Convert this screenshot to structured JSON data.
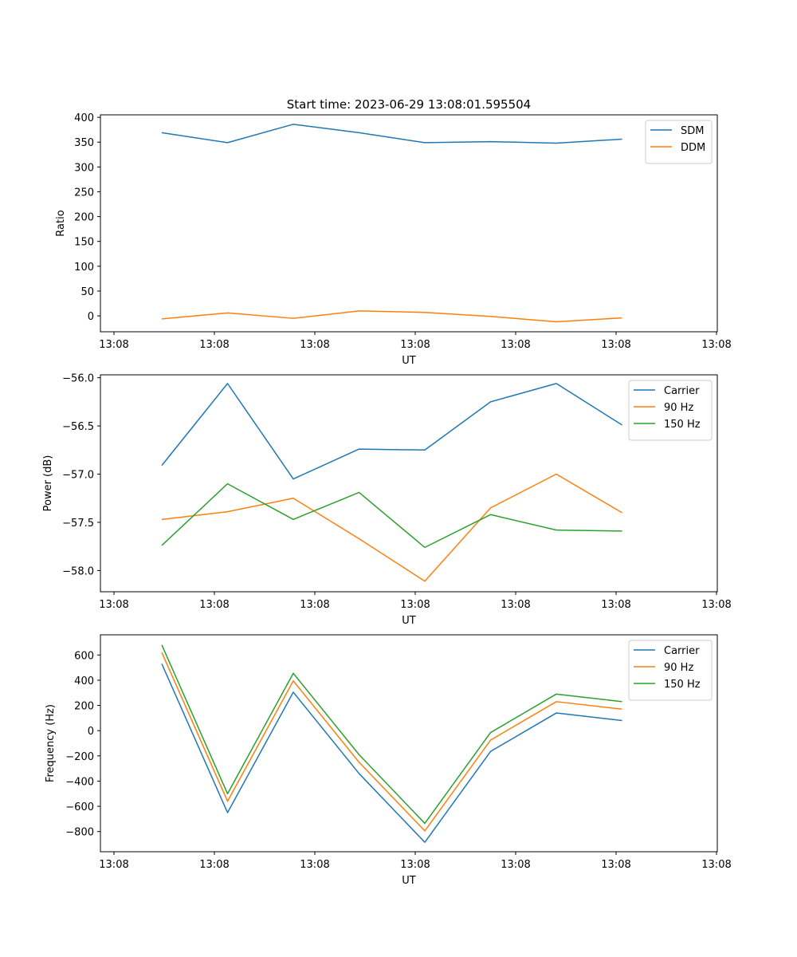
{
  "figure_title": "Start time: 2023-06-29 13:08:01.595504",
  "x_tick_labels": [
    "13:08",
    "13:08",
    "13:08",
    "13:08",
    "13:08",
    "13:08",
    "13:08"
  ],
  "chart_data": [
    {
      "type": "line",
      "title": "Start time: 2023-06-29 13:08:01.595504",
      "xlabel": "UT",
      "ylabel": "Ratio",
      "ylim": [
        -32,
        405
      ],
      "y_ticks": [
        0,
        50,
        100,
        150,
        200,
        250,
        300,
        350,
        400
      ],
      "y_tick_labels": [
        "0",
        "50",
        "100",
        "150",
        "200",
        "250",
        "300",
        "350",
        "400"
      ],
      "legend_position": "top-right",
      "series": [
        {
          "name": "SDM",
          "color": "#1f77b4",
          "values": [
            369,
            349,
            386,
            369,
            349,
            351,
            348,
            356
          ]
        },
        {
          "name": "DDM",
          "color": "#ff7f0e",
          "values": [
            -6,
            6,
            -5,
            10,
            7,
            -1,
            -12,
            -4
          ]
        }
      ]
    },
    {
      "type": "line",
      "xlabel": "UT",
      "ylabel": "Power (dB)",
      "ylim": [
        -58.22,
        -55.97
      ],
      "y_ticks": [
        -56.0,
        -56.5,
        -57.0,
        -57.5,
        -58.0
      ],
      "y_tick_labels": [
        "−56.0",
        "−56.5",
        "−57.0",
        "−57.5",
        "−58.0"
      ],
      "legend_position": "top-right",
      "series": [
        {
          "name": "Carrier",
          "color": "#1f77b4",
          "values": [
            -56.91,
            -56.06,
            -57.05,
            -56.74,
            -56.75,
            -56.25,
            -56.06,
            -56.49
          ]
        },
        {
          "name": "90 Hz",
          "color": "#ff7f0e",
          "values": [
            -57.47,
            -57.39,
            -57.25,
            -57.67,
            -58.11,
            -57.35,
            -57.0,
            -57.4
          ]
        },
        {
          "name": "150 Hz",
          "color": "#2ca02c",
          "values": [
            -57.74,
            -57.1,
            -57.47,
            -57.19,
            -57.76,
            -57.42,
            -57.58,
            -57.59
          ]
        }
      ]
    },
    {
      "type": "line",
      "xlabel": "UT",
      "ylabel": "Frequency (Hz)",
      "ylim": [
        -960,
        760
      ],
      "y_ticks": [
        600,
        400,
        200,
        0,
        -200,
        -400,
        -600,
        -800
      ],
      "y_tick_labels": [
        "600",
        "400",
        "200",
        "0",
        "−200",
        "−400",
        "−600",
        "−800"
      ],
      "legend_position": "top-right",
      "series": [
        {
          "name": "Carrier",
          "color": "#1f77b4",
          "values": [
            530,
            -650,
            305,
            -340,
            -885,
            -165,
            140,
            80
          ]
        },
        {
          "name": "90 Hz",
          "color": "#ff7f0e",
          "values": [
            620,
            -560,
            395,
            -250,
            -795,
            -75,
            230,
            170
          ]
        },
        {
          "name": "150 Hz",
          "color": "#2ca02c",
          "values": [
            680,
            -500,
            455,
            -190,
            -735,
            -15,
            290,
            230
          ]
        }
      ]
    }
  ]
}
